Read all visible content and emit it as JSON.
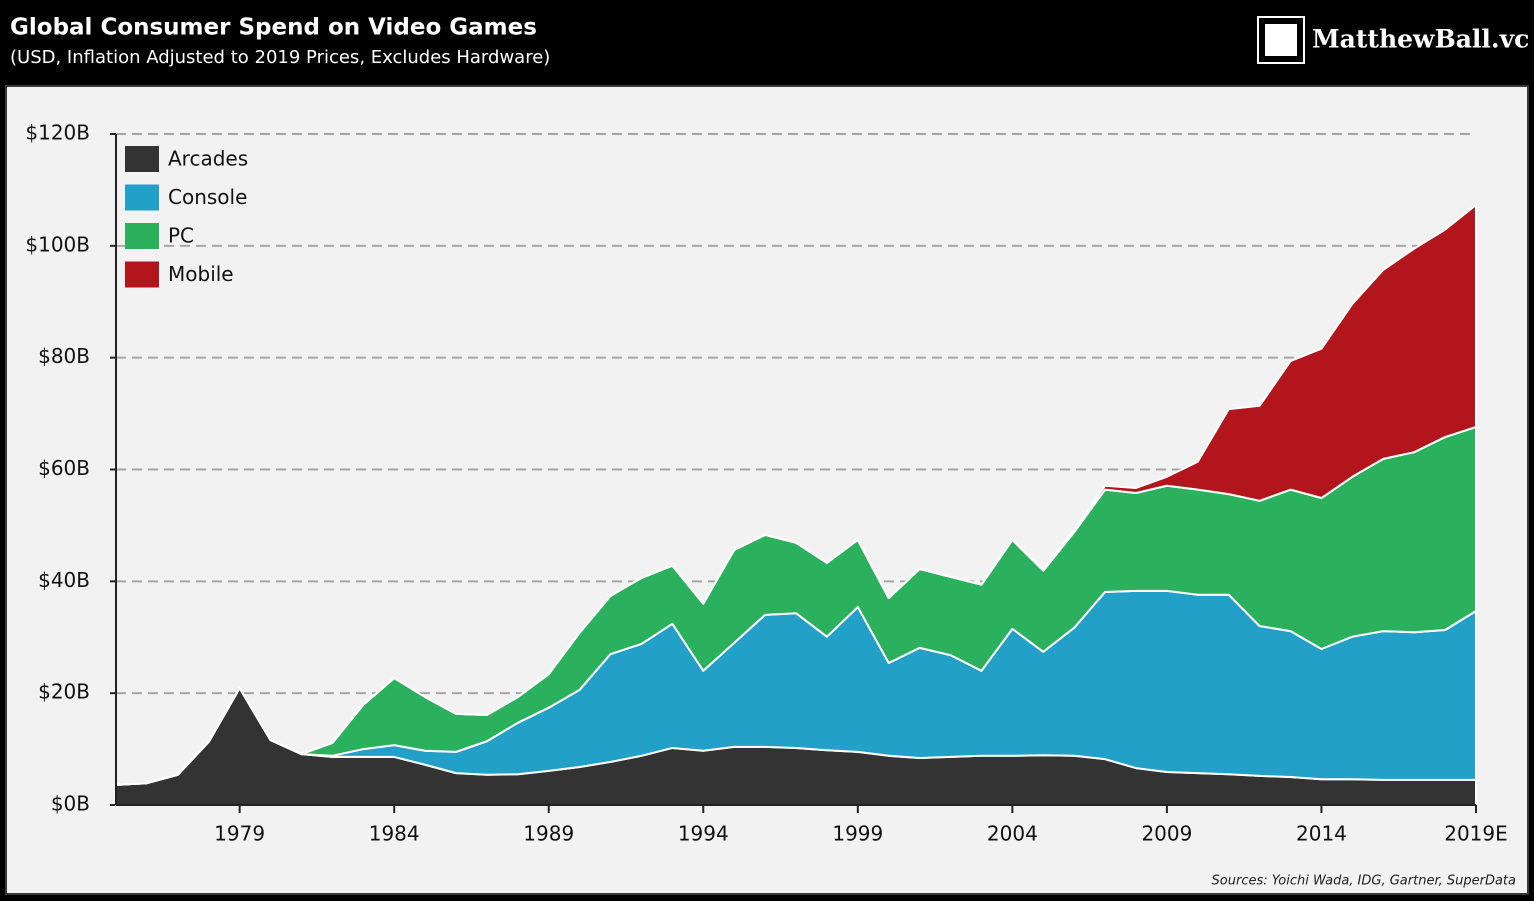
{
  "chart_data": {
    "type": "stacked_area",
    "title": "Global Consumer Spend on Video Games",
    "subtitle": "(USD, Inflation Adjusted to 2019 Prices, Excludes Hardware)",
    "logo": "MatthewBall.vc",
    "source": "Sources: Yoichi Wada, IDG, Gartner, SuperData",
    "x": [
      1975,
      1976,
      1977,
      1978,
      1979,
      1980,
      1981,
      1982,
      1983,
      1984,
      1985,
      1986,
      1987,
      1988,
      1989,
      1990,
      1991,
      1992,
      1993,
      1994,
      1995,
      1996,
      1997,
      1998,
      1999,
      2000,
      2001,
      2002,
      2003,
      2004,
      2005,
      2006,
      2007,
      2008,
      2009,
      2010,
      2011,
      2012,
      2013,
      2014,
      2015,
      2016,
      2017,
      2018,
      2019
    ],
    "xlim": [
      1975,
      2019
    ],
    "xticks": [
      1979,
      1984,
      1989,
      1994,
      1999,
      2004,
      2009,
      2014,
      {
        "value": 2019,
        "label": "2019E"
      }
    ],
    "ylim": [
      0,
      120
    ],
    "yticks": [
      {
        "value": 0,
        "label": "$0B"
      },
      {
        "value": 20,
        "label": "$20B"
      },
      {
        "value": 40,
        "label": "$40B"
      },
      {
        "value": 60,
        "label": "$60B"
      },
      {
        "value": 80,
        "label": "$80B"
      },
      {
        "value": 100,
        "label": "$100B"
      },
      {
        "value": 120,
        "label": "$120B"
      }
    ],
    "grid": true,
    "legend": "top-left",
    "series": [
      {
        "name": "Arcades",
        "color": "#333333",
        "values": [
          3.6,
          3.9,
          5.4,
          11.3,
          20.9,
          11.6,
          9.1,
          8.6,
          8.6,
          8.6,
          7.2,
          5.7,
          5.4,
          5.5,
          6.1,
          6.8,
          7.7,
          8.8,
          10.2,
          9.7,
          10.4,
          10.4,
          10.2,
          9.8,
          9.5,
          8.8,
          8.4,
          8.6,
          8.8,
          8.8,
          8.9,
          8.8,
          8.2,
          6.6,
          5.9,
          5.7,
          5.5,
          5.2,
          5.0,
          4.6,
          4.6,
          4.5,
          4.5,
          4.5,
          4.5
        ]
      },
      {
        "name": "Console",
        "color": "#22a0c8",
        "values": [
          0,
          0,
          0,
          0,
          0,
          0,
          0,
          0.2,
          1.4,
          2.1,
          2.5,
          3.8,
          6.0,
          9.2,
          11.3,
          13.8,
          19.3,
          20.0,
          22.2,
          14.3,
          18.6,
          23.6,
          24.1,
          20.3,
          25.9,
          16.6,
          19.7,
          18.2,
          15.2,
          22.7,
          18.5,
          22.9,
          29.9,
          31.7,
          32.4,
          31.9,
          32.1,
          26.8,
          26.1,
          23.3,
          25.5,
          26.6,
          26.4,
          26.8,
          30.2
        ]
      },
      {
        "name": "PC",
        "color": "#2bb05e",
        "values": [
          0,
          0,
          0,
          0,
          0,
          0,
          0,
          2.3,
          7.9,
          12.0,
          9.6,
          6.8,
          4.7,
          4.6,
          6.0,
          10.2,
          10.4,
          11.8,
          10.4,
          12.0,
          16.6,
          14.3,
          12.6,
          13.2,
          12.0,
          11.6,
          14.1,
          14.0,
          15.4,
          15.9,
          14.5,
          17.1,
          18.3,
          17.5,
          18.8,
          18.8,
          18.0,
          22.4,
          25.3,
          27.0,
          28.6,
          30.8,
          32.2,
          34.5,
          32.9
        ]
      },
      {
        "name": "Mobile",
        "color": "#b3151c",
        "values": [
          0,
          0,
          0,
          0,
          0,
          0,
          0,
          0,
          0,
          0,
          0,
          0,
          0,
          0,
          0,
          0,
          0,
          0,
          0,
          0,
          0,
          0,
          0,
          0,
          0,
          0,
          0,
          0,
          0,
          0,
          0.3,
          0.4,
          0.7,
          0.9,
          1.6,
          5.0,
          15.2,
          17.0,
          23.0,
          26.7,
          30.9,
          33.8,
          36.4,
          37.1,
          39.7
        ]
      }
    ]
  }
}
